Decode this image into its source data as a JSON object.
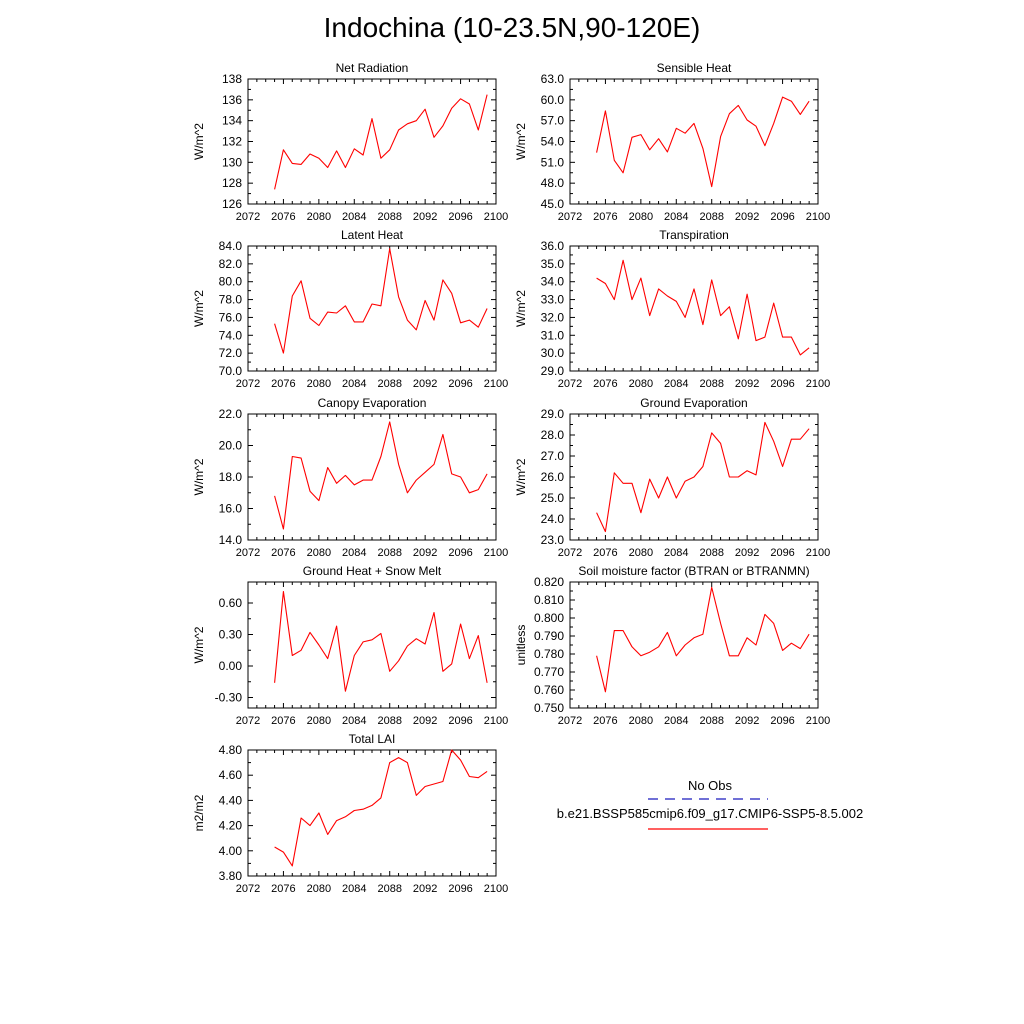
{
  "page": {
    "title": "Indochina (10-23.5N,90-120E)"
  },
  "legend": {
    "entries": [
      {
        "label": "No Obs",
        "color": "#4040c8",
        "dash": "dashed"
      },
      {
        "label": "b.e21.BSSP585cmip6.f09_g17.CMIP6-SSP5-8.5.002",
        "color": "#ff0000",
        "dash": "solid"
      }
    ]
  },
  "chart_data": [
    {
      "type": "line",
      "title": "Net Radiation",
      "ylabel": "W/m^2",
      "xlim": [
        2072,
        2100
      ],
      "ylim": [
        126,
        138
      ],
      "xticks": [
        "2072",
        "2076",
        "2080",
        "2084",
        "2088",
        "2092",
        "2096",
        "2100"
      ],
      "yticks": [
        "126",
        "128",
        "130",
        "132",
        "134",
        "136",
        "138"
      ],
      "x": [
        2075,
        2076,
        2077,
        2078,
        2079,
        2080,
        2081,
        2082,
        2083,
        2084,
        2085,
        2086,
        2087,
        2088,
        2089,
        2090,
        2091,
        2092,
        2093,
        2094,
        2095,
        2096,
        2097,
        2098,
        2099
      ],
      "series": [
        {
          "color": "#ff0000",
          "values": [
            127.4,
            131.2,
            129.9,
            129.8,
            130.8,
            130.4,
            129.5,
            131.1,
            129.5,
            131.3,
            130.7,
            134.2,
            130.4,
            131.2,
            133.1,
            133.7,
            134.0,
            135.1,
            132.4,
            133.5,
            135.2,
            136.1,
            135.6,
            133.1,
            136.5
          ]
        }
      ]
    },
    {
      "type": "line",
      "title": "Sensible Heat",
      "ylabel": "W/m^2",
      "xlim": [
        2072,
        2100
      ],
      "ylim": [
        45,
        63
      ],
      "xticks": [
        "2072",
        "2076",
        "2080",
        "2084",
        "2088",
        "2092",
        "2096",
        "2100"
      ],
      "yticks": [
        "45.0",
        "48.0",
        "51.0",
        "54.0",
        "57.0",
        "60.0",
        "63.0"
      ],
      "x": [
        2075,
        2076,
        2077,
        2078,
        2079,
        2080,
        2081,
        2082,
        2083,
        2084,
        2085,
        2086,
        2087,
        2088,
        2089,
        2090,
        2091,
        2092,
        2093,
        2094,
        2095,
        2096,
        2097,
        2098,
        2099
      ],
      "series": [
        {
          "color": "#ff0000",
          "values": [
            52.4,
            58.4,
            51.3,
            49.5,
            54.6,
            55.0,
            52.8,
            54.4,
            52.5,
            55.9,
            55.2,
            56.6,
            53.0,
            47.5,
            54.7,
            58.0,
            59.2,
            57.1,
            56.2,
            53.4,
            56.6,
            60.4,
            59.8,
            57.9,
            59.8
          ]
        }
      ]
    },
    {
      "type": "line",
      "title": "Latent Heat",
      "ylabel": "W/m^2",
      "xlim": [
        2072,
        2100
      ],
      "ylim": [
        70,
        84
      ],
      "xticks": [
        "2072",
        "2076",
        "2080",
        "2084",
        "2088",
        "2092",
        "2096",
        "2100"
      ],
      "yticks": [
        "70.0",
        "72.0",
        "74.0",
        "76.0",
        "78.0",
        "80.0",
        "82.0",
        "84.0"
      ],
      "x": [
        2075,
        2076,
        2077,
        2078,
        2079,
        2080,
        2081,
        2082,
        2083,
        2084,
        2085,
        2086,
        2087,
        2088,
        2089,
        2090,
        2091,
        2092,
        2093,
        2094,
        2095,
        2096,
        2097,
        2098,
        2099
      ],
      "series": [
        {
          "color": "#ff0000",
          "values": [
            75.3,
            72.0,
            78.4,
            80.1,
            75.9,
            75.1,
            76.6,
            76.5,
            77.3,
            75.5,
            75.5,
            77.5,
            77.3,
            83.7,
            78.3,
            75.7,
            74.6,
            77.9,
            75.7,
            80.2,
            78.7,
            75.4,
            75.7,
            74.9,
            77.0
          ]
        }
      ]
    },
    {
      "type": "line",
      "title": "Transpiration",
      "ylabel": "W/m^2",
      "xlim": [
        2072,
        2100
      ],
      "ylim": [
        29,
        36
      ],
      "xticks": [
        "2072",
        "2076",
        "2080",
        "2084",
        "2088",
        "2092",
        "2096",
        "2100"
      ],
      "yticks": [
        "29.0",
        "30.0",
        "31.0",
        "32.0",
        "33.0",
        "34.0",
        "35.0",
        "36.0"
      ],
      "x": [
        2075,
        2076,
        2077,
        2078,
        2079,
        2080,
        2081,
        2082,
        2083,
        2084,
        2085,
        2086,
        2087,
        2088,
        2089,
        2090,
        2091,
        2092,
        2093,
        2094,
        2095,
        2096,
        2097,
        2098,
        2099
      ],
      "series": [
        {
          "color": "#ff0000",
          "values": [
            34.2,
            33.9,
            33.0,
            35.2,
            33.0,
            34.2,
            32.1,
            33.6,
            33.2,
            32.9,
            32.0,
            33.6,
            31.6,
            34.1,
            32.1,
            32.6,
            30.8,
            33.3,
            30.7,
            30.9,
            32.8,
            30.9,
            30.9,
            29.9,
            30.3
          ]
        }
      ]
    },
    {
      "type": "line",
      "title": "Canopy Evaporation",
      "ylabel": "W/m^2",
      "xlim": [
        2072,
        2100
      ],
      "ylim": [
        14,
        22
      ],
      "xticks": [
        "2072",
        "2076",
        "2080",
        "2084",
        "2088",
        "2092",
        "2096",
        "2100"
      ],
      "yticks": [
        "14.0",
        "16.0",
        "18.0",
        "20.0",
        "22.0"
      ],
      "x": [
        2075,
        2076,
        2077,
        2078,
        2079,
        2080,
        2081,
        2082,
        2083,
        2084,
        2085,
        2086,
        2087,
        2088,
        2089,
        2090,
        2091,
        2092,
        2093,
        2094,
        2095,
        2096,
        2097,
        2098,
        2099
      ],
      "series": [
        {
          "color": "#ff0000",
          "values": [
            16.8,
            14.7,
            19.3,
            19.2,
            17.1,
            16.5,
            18.6,
            17.6,
            18.1,
            17.5,
            17.8,
            17.8,
            19.3,
            21.5,
            18.8,
            17.0,
            17.8,
            18.3,
            18.8,
            20.7,
            18.2,
            18.0,
            17.0,
            17.2,
            18.2
          ]
        }
      ]
    },
    {
      "type": "line",
      "title": "Ground Evaporation",
      "ylabel": "W/m^2",
      "xlim": [
        2072,
        2100
      ],
      "ylim": [
        23,
        29
      ],
      "xticks": [
        "2072",
        "2076",
        "2080",
        "2084",
        "2088",
        "2092",
        "2096",
        "2100"
      ],
      "yticks": [
        "23.0",
        "24.0",
        "25.0",
        "26.0",
        "27.0",
        "28.0",
        "29.0"
      ],
      "x": [
        2075,
        2076,
        2077,
        2078,
        2079,
        2080,
        2081,
        2082,
        2083,
        2084,
        2085,
        2086,
        2087,
        2088,
        2089,
        2090,
        2091,
        2092,
        2093,
        2094,
        2095,
        2096,
        2097,
        2098,
        2099
      ],
      "series": [
        {
          "color": "#ff0000",
          "values": [
            24.3,
            23.4,
            26.2,
            25.7,
            25.7,
            24.3,
            25.9,
            25.0,
            26.0,
            25.0,
            25.8,
            26.0,
            26.5,
            28.1,
            27.6,
            26.0,
            26.0,
            26.3,
            26.1,
            28.6,
            27.7,
            26.5,
            27.8,
            27.8,
            28.3
          ]
        }
      ]
    },
    {
      "type": "line",
      "title": "Ground Heat + Snow Melt",
      "ylabel": "W/m^2",
      "xlim": [
        2072,
        2100
      ],
      "ylim": [
        -0.4,
        0.8
      ],
      "xticks": [
        "2072",
        "2076",
        "2080",
        "2084",
        "2088",
        "2092",
        "2096",
        "2100"
      ],
      "yticks": [
        "-0.30",
        "0.00",
        "0.30",
        "0.60"
      ],
      "ytick_values": [
        -0.3,
        0.0,
        0.3,
        0.6
      ],
      "x": [
        2075,
        2076,
        2077,
        2078,
        2079,
        2080,
        2081,
        2082,
        2083,
        2084,
        2085,
        2086,
        2087,
        2088,
        2089,
        2090,
        2091,
        2092,
        2093,
        2094,
        2095,
        2096,
        2097,
        2098,
        2099
      ],
      "series": [
        {
          "color": "#ff0000",
          "values": [
            -0.16,
            0.71,
            0.1,
            0.15,
            0.32,
            0.2,
            0.07,
            0.38,
            -0.24,
            0.1,
            0.23,
            0.25,
            0.31,
            -0.05,
            0.05,
            0.19,
            0.26,
            0.21,
            0.51,
            -0.05,
            0.02,
            0.4,
            0.07,
            0.29,
            -0.16
          ]
        }
      ]
    },
    {
      "type": "line",
      "title": "Soil moisture factor (BTRAN or BTRANMN)",
      "ylabel": "unitless",
      "xlim": [
        2072,
        2100
      ],
      "ylim": [
        0.75,
        0.82
      ],
      "xticks": [
        "2072",
        "2076",
        "2080",
        "2084",
        "2088",
        "2092",
        "2096",
        "2100"
      ],
      "yticks": [
        "0.750",
        "0.760",
        "0.770",
        "0.780",
        "0.790",
        "0.800",
        "0.810",
        "0.820"
      ],
      "x": [
        2075,
        2076,
        2077,
        2078,
        2079,
        2080,
        2081,
        2082,
        2083,
        2084,
        2085,
        2086,
        2087,
        2088,
        2089,
        2090,
        2091,
        2092,
        2093,
        2094,
        2095,
        2096,
        2097,
        2098,
        2099
      ],
      "series": [
        {
          "color": "#ff0000",
          "values": [
            0.779,
            0.759,
            0.793,
            0.793,
            0.784,
            0.779,
            0.781,
            0.784,
            0.792,
            0.779,
            0.785,
            0.789,
            0.791,
            0.817,
            0.797,
            0.779,
            0.779,
            0.789,
            0.785,
            0.802,
            0.797,
            0.782,
            0.786,
            0.783,
            0.791
          ]
        }
      ]
    },
    {
      "type": "line",
      "title": "Total LAI",
      "ylabel": "m2/m2",
      "xlim": [
        2072,
        2100
      ],
      "ylim": [
        3.8,
        4.8
      ],
      "xticks": [
        "2072",
        "2076",
        "2080",
        "2084",
        "2088",
        "2092",
        "2096",
        "2100"
      ],
      "yticks": [
        "3.80",
        "4.00",
        "4.20",
        "4.40",
        "4.60",
        "4.80"
      ],
      "x": [
        2075,
        2076,
        2077,
        2078,
        2079,
        2080,
        2081,
        2082,
        2083,
        2084,
        2085,
        2086,
        2087,
        2088,
        2089,
        2090,
        2091,
        2092,
        2093,
        2094,
        2095,
        2096,
        2097,
        2098,
        2099
      ],
      "series": [
        {
          "color": "#ff0000",
          "values": [
            4.03,
            3.99,
            3.88,
            4.26,
            4.2,
            4.3,
            4.13,
            4.24,
            4.27,
            4.32,
            4.33,
            4.36,
            4.42,
            4.7,
            4.74,
            4.7,
            4.44,
            4.51,
            4.53,
            4.55,
            4.8,
            4.72,
            4.59,
            4.58,
            4.63
          ]
        }
      ]
    }
  ]
}
